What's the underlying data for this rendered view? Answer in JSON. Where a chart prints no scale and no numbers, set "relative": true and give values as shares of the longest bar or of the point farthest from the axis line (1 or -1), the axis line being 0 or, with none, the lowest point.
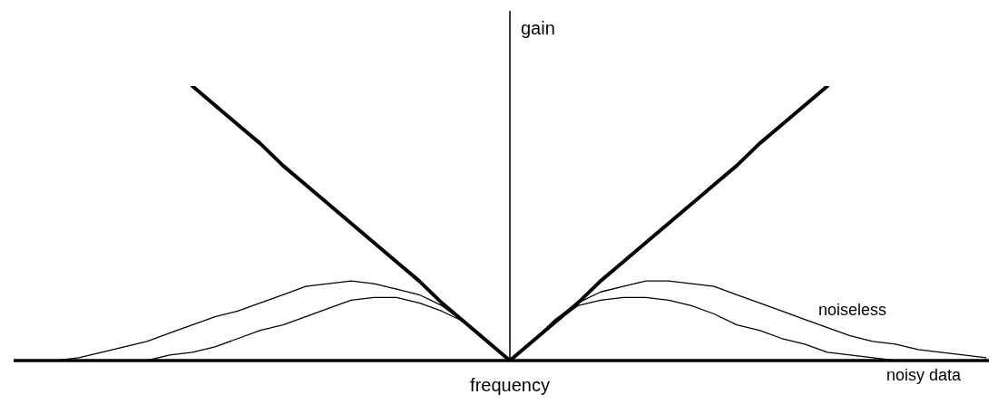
{
  "chart_data": {
    "type": "line",
    "relative": true,
    "xlabel": "frequency",
    "ylabel": "gain",
    "marker": "none",
    "line_style": "solid",
    "categories": [
      null,
      null,
      null,
      null,
      null,
      null,
      null,
      null,
      null,
      null,
      null,
      null,
      null,
      null,
      null,
      null,
      null,
      null,
      null,
      null,
      null,
      null,
      null,
      null,
      null,
      null,
      null,
      null,
      null,
      null,
      null,
      null,
      null,
      null,
      null,
      null,
      null,
      null,
      null,
      null,
      null,
      null,
      null
    ],
    "series": [
      {
        "color": "#000000",
        "values": [
          null,
          null,
          null,
          null,
          null,
          null,
          null,
          1,
          0.93,
          0.86,
          0.79,
          0.71,
          0.64,
          0.57,
          0.5,
          0.43,
          0.36,
          0.29,
          0.21,
          0.14,
          0.07,
          0,
          0.07,
          0.14,
          0.21,
          0.29,
          0.36,
          0.43,
          0.5,
          0.57,
          0.64,
          0.71,
          0.79,
          0.86,
          0.93,
          1,
          null,
          null,
          null,
          null,
          null,
          null,
          null
        ]
      },
      {
        "name": "noiseless",
        "color": "#000000",
        "values": [
          null,
          0,
          0.01,
          0.03,
          0.05,
          0.07,
          0.1,
          0.13,
          0.16,
          0.18,
          0.21,
          0.24,
          0.27,
          0.28,
          0.29,
          0.28,
          0.26,
          0.24,
          0.2,
          0.14,
          0.07,
          0,
          0.07,
          0.15,
          0.21,
          0.25,
          0.27,
          0.29,
          0.29,
          0.28,
          0.27,
          0.24,
          0.21,
          0.18,
          0.15,
          0.12,
          0.09,
          0.07,
          0.06,
          0.04,
          0.03,
          0.02,
          0.01
        ]
      },
      {
        "name": "noisy data",
        "color": "#000000",
        "values": [
          null,
          null,
          null,
          null,
          null,
          0,
          0.02,
          0.03,
          0.05,
          0.08,
          0.11,
          0.13,
          0.16,
          0.19,
          0.22,
          0.23,
          0.23,
          0.21,
          0.18,
          0.14,
          0.07,
          0,
          0.07,
          0.14,
          0.2,
          0.22,
          0.23,
          0.23,
          0.22,
          0.2,
          0.17,
          0.13,
          0.11,
          0.08,
          0.06,
          0.03,
          0.02,
          0.01,
          0,
          0,
          null,
          null,
          null
        ]
      }
    ]
  }
}
